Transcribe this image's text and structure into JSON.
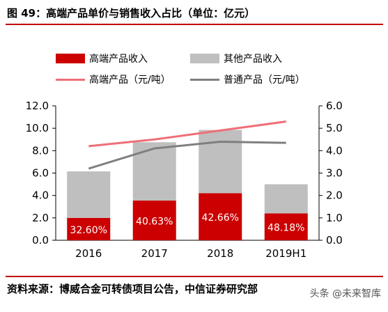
{
  "header": {
    "title": "图 49：高端产品单价与销售收入占比（单位：亿元）"
  },
  "legend": {
    "items": [
      {
        "label": "高端产品收入",
        "color": "#cc0000",
        "kind": "bar"
      },
      {
        "label": "其他产品收入",
        "color": "#bfbfbf",
        "kind": "bar"
      },
      {
        "label": "高端产品（元/吨）",
        "color": "#ee6f78",
        "kind": "line"
      },
      {
        "label": "普通产品（元/吨）",
        "color": "#7f7f7f",
        "kind": "line"
      }
    ]
  },
  "chart_data": {
    "type": "bar",
    "categories": [
      "2016",
      "2017",
      "2018",
      "2019H1"
    ],
    "series": [
      {
        "name": "高端产品收入",
        "type": "stacked-bar",
        "axis": "left",
        "color": "#cc0000",
        "values": [
          2.0,
          3.55,
          4.2,
          2.4
        ]
      },
      {
        "name": "其他产品收入",
        "type": "stacked-bar",
        "axis": "left",
        "color": "#bfbfbf",
        "values": [
          4.15,
          5.2,
          5.65,
          2.6
        ]
      },
      {
        "name": "高端产品（元/吨）",
        "type": "line",
        "axis": "right",
        "color": "#ee6f78",
        "values": [
          4.2,
          4.5,
          4.9,
          5.3
        ]
      },
      {
        "name": "普通产品（元/吨）",
        "type": "line",
        "axis": "right",
        "color": "#7f7f7f",
        "values": [
          3.2,
          4.1,
          4.4,
          4.35
        ]
      }
    ],
    "bar_labels": [
      "32.60%",
      "40.63%",
      "42.66%",
      "48.18%"
    ],
    "y_left": {
      "min": 0,
      "max": 12,
      "step": 2,
      "ticks": [
        "0.0",
        "2.0",
        "4.0",
        "6.0",
        "8.0",
        "10.0",
        "12.0"
      ]
    },
    "y_right": {
      "min": 0,
      "max": 6,
      "step": 1,
      "ticks": [
        "0.0",
        "1.0",
        "2.0",
        "3.0",
        "4.0",
        "5.0",
        "6.0"
      ]
    },
    "grid": false,
    "legend_position": "top"
  },
  "footer": {
    "source": "资料来源：博威合金可转债项目公告，中信证券研究部",
    "watermark": "头条 @未来智库"
  }
}
